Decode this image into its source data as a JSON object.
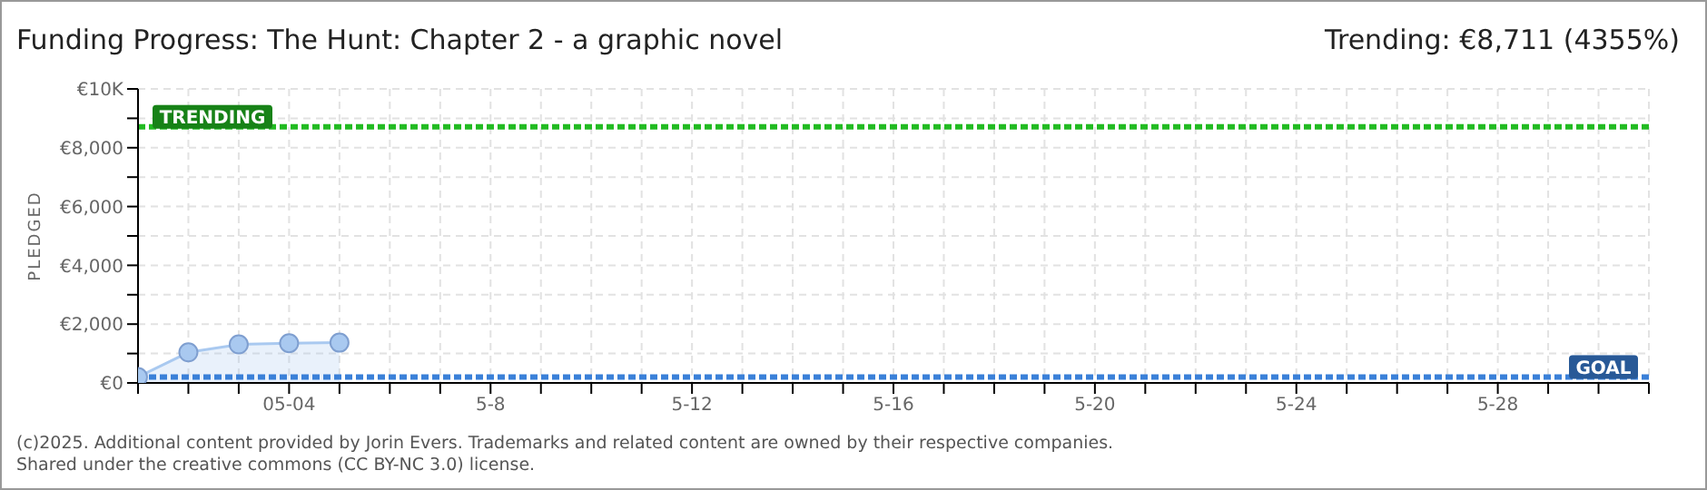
{
  "chart_data": {
    "type": "area",
    "title": "Funding Progress: The Hunt: Chapter 2 - a graphic novel",
    "subtitle": "Trending: €8,711 (4355%)",
    "ylabel": "PLEDGED",
    "x": [
      "--05-01",
      "--05-02",
      "--05-03",
      "--05-04",
      "--05-05"
    ],
    "series": [
      {
        "color": "#a9c9f0",
        "values": [
          200,
          1040,
          1310,
          1350,
          1370
        ]
      }
    ],
    "marker": "circle",
    "grid": true,
    "legend": false,
    "xlim": [
      "--05-01",
      "--05-31"
    ],
    "xticks": [
      {
        "value": "--05-01",
        "label": null
      },
      {
        "value": "--05-02",
        "label": null
      },
      {
        "value": "--05-03",
        "label": null
      },
      {
        "value": "--05-04",
        "label": "05-04"
      },
      {
        "value": "--05-05",
        "label": null
      },
      {
        "value": "--05-06",
        "label": null
      },
      {
        "value": "--05-07",
        "label": null
      },
      {
        "value": "--05-08",
        "label": "5-8"
      },
      {
        "value": "--05-09",
        "label": null
      },
      {
        "value": "--05-10",
        "label": null
      },
      {
        "value": "--05-11",
        "label": null
      },
      {
        "value": "--05-12",
        "label": "5-12"
      },
      {
        "value": "--05-13",
        "label": null
      },
      {
        "value": "--05-14",
        "label": null
      },
      {
        "value": "--05-15",
        "label": null
      },
      {
        "value": "--05-16",
        "label": "5-16"
      },
      {
        "value": "--05-17",
        "label": null
      },
      {
        "value": "--05-18",
        "label": null
      },
      {
        "value": "--05-19",
        "label": null
      },
      {
        "value": "--05-20",
        "label": "5-20"
      },
      {
        "value": "--05-21",
        "label": null
      },
      {
        "value": "--05-22",
        "label": null
      },
      {
        "value": "--05-23",
        "label": null
      },
      {
        "value": "--05-24",
        "label": "5-24"
      },
      {
        "value": "--05-25",
        "label": null
      },
      {
        "value": "--05-26",
        "label": null
      },
      {
        "value": "--05-27",
        "label": null
      },
      {
        "value": "--05-28",
        "label": "5-28"
      },
      {
        "value": "--05-29",
        "label": null
      },
      {
        "value": "--05-30",
        "label": null
      },
      {
        "value": "--05-31",
        "label": null
      }
    ],
    "ylim": [
      0,
      10000
    ],
    "yticks": [
      {
        "value": 0,
        "label": "€0"
      },
      {
        "value": 1000,
        "label": null
      },
      {
        "value": 2000,
        "label": "€2,000"
      },
      {
        "value": 3000,
        "label": null
      },
      {
        "value": 4000,
        "label": "€4,000"
      },
      {
        "value": 5000,
        "label": null
      },
      {
        "value": 6000,
        "label": "€6,000"
      },
      {
        "value": 7000,
        "label": null
      },
      {
        "value": 8000,
        "label": "€8,000"
      },
      {
        "value": 9000,
        "label": null
      },
      {
        "value": 10000,
        "label": "€10K"
      }
    ],
    "ref_lines": [
      {
        "axis": "y",
        "value": 8711,
        "label": "TRENDING",
        "color": "#22bb22",
        "line_style": "dashed"
      },
      {
        "axis": "y",
        "value": 200,
        "label": "GOAL",
        "color": "#3a80d8",
        "line_style": "dashed"
      }
    ],
    "annotations": [
      "(c)2025. Additional content provided by Jorin Evers. Trademarks and related content are owned by their respective companies.",
      "Shared under the creative commons (CC BY-NC 3.0) license."
    ]
  }
}
